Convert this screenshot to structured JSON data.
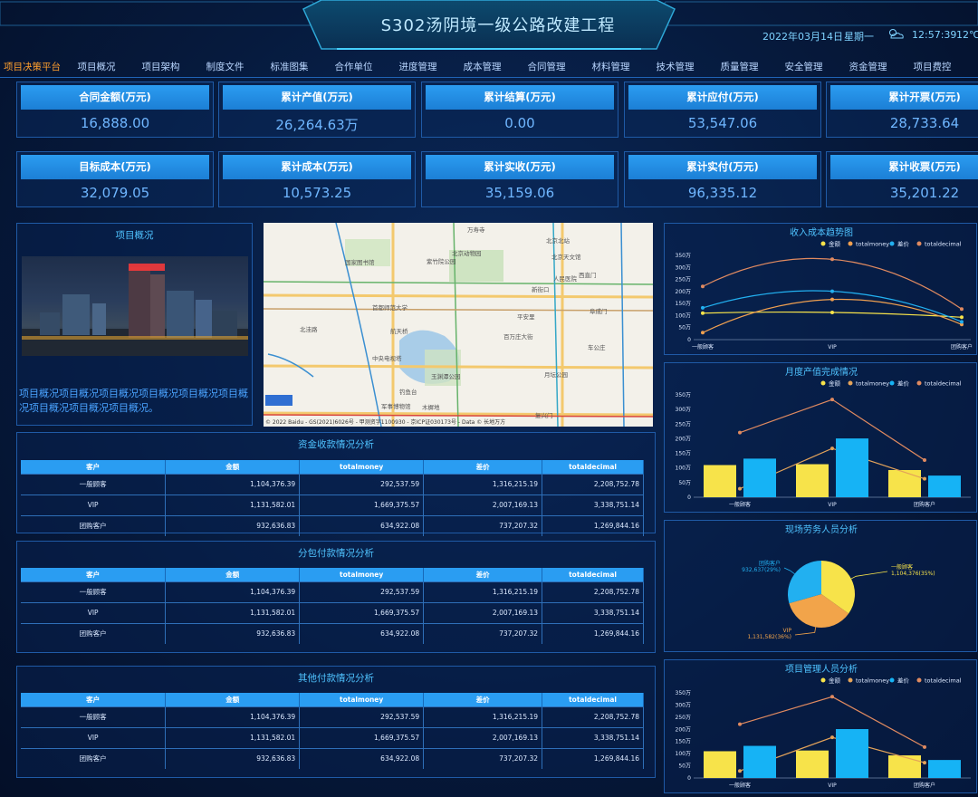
{
  "header": {
    "title": "S302汤阴境一级公路改建工程",
    "date": "2022年03月14日",
    "weekday": "星期一",
    "time": "12:57:39",
    "temperature": "12℃",
    "weather_icon": "cloudy-icon"
  },
  "nav": [
    {
      "label": "项目决策平台",
      "active": true
    },
    {
      "label": "项目概况"
    },
    {
      "label": "项目架构"
    },
    {
      "label": "制度文件"
    },
    {
      "label": "标准图集"
    },
    {
      "label": "合作单位"
    },
    {
      "label": "进度管理"
    },
    {
      "label": "成本管理"
    },
    {
      "label": "合同管理"
    },
    {
      "label": "材料管理"
    },
    {
      "label": "技术管理"
    },
    {
      "label": "质量管理"
    },
    {
      "label": "安全管理"
    },
    {
      "label": "资金管理"
    },
    {
      "label": "项目费控"
    }
  ],
  "kpis": [
    {
      "label": "合同金额(万元)",
      "value": "16,888.00"
    },
    {
      "label": "累计产值(万元)",
      "value": "26,264.63万"
    },
    {
      "label": "累计结算(万元)",
      "value": "0.00"
    },
    {
      "label": "累计应付(万元)",
      "value": "53,547.06"
    },
    {
      "label": "累计开票(万元)",
      "value": "28,733.64"
    },
    {
      "label": "目标成本(万元)",
      "value": "32,079.05"
    },
    {
      "label": "累计成本(万元)",
      "value": "10,573.25"
    },
    {
      "label": "累计实收(万元)",
      "value": "35,159.06"
    },
    {
      "label": "累计实付(万元)",
      "value": "96,335.12"
    },
    {
      "label": "累计收票(万元)",
      "value": "35,201.22"
    }
  ],
  "overview": {
    "title": "项目概况",
    "text": "项目概况项目概况项目概况项目概况项目概况项目概况项目概况项目概况项目概况。"
  },
  "map": {
    "labels": [
      "万寿寺",
      "北京动物园",
      "北京北站",
      "国家图书馆",
      "紫竹院公园",
      "首都师范大学",
      "西直门",
      "北京天文馆",
      "新街口",
      "人民医院",
      "平安里",
      "百万庄大街",
      "中央电视塔",
      "玉渊潭公园",
      "钓鱼台",
      "军事博物馆",
      "月坛公园",
      "木樨地",
      "复兴门",
      "车公庄",
      "阜成门",
      "航天桥",
      "北洼路"
    ],
    "credit": "© 2022 Baidu - GS(2021)6026号 - 甲测资字1100930 - 京ICP证030173号 - Data © 长地万方"
  },
  "tables": [
    {
      "title": "资金收款情况分析",
      "headers": [
        "客户",
        "金额",
        "totalmoney",
        "差价",
        "totaldecimal"
      ],
      "rows": [
        [
          "一般顾客",
          "1,104,376.39",
          "292,537.59",
          "1,316,215.19",
          "2,208,752.78"
        ],
        [
          "VIP",
          "1,131,582.01",
          "1,669,375.57",
          "2,007,169.13",
          "3,338,751.14"
        ],
        [
          "团购客户",
          "932,636.83",
          "634,922.08",
          "737,207.32",
          "1,269,844.16"
        ]
      ]
    },
    {
      "title": "分包付款情况分析",
      "headers": [
        "客户",
        "金额",
        "totalmoney",
        "差价",
        "totaldecimal"
      ],
      "rows": [
        [
          "一般顾客",
          "1,104,376.39",
          "292,537.59",
          "1,316,215.19",
          "2,208,752.78"
        ],
        [
          "VIP",
          "1,131,582.01",
          "1,669,375.57",
          "2,007,169.13",
          "3,338,751.14"
        ],
        [
          "团购客户",
          "932,636.83",
          "634,922.08",
          "737,207.32",
          "1,269,844.16"
        ]
      ]
    },
    {
      "title": "其他付款情况分析",
      "headers": [
        "客户",
        "金额",
        "totalmoney",
        "差价",
        "totaldecimal"
      ],
      "rows": [
        [
          "一般顾客",
          "1,104,376.39",
          "292,537.59",
          "1,316,215.19",
          "2,208,752.78"
        ],
        [
          "VIP",
          "1,131,582.01",
          "1,669,375.57",
          "2,007,169.13",
          "3,338,751.14"
        ],
        [
          "团购客户",
          "932,636.83",
          "634,922.08",
          "737,207.32",
          "1,269,844.16"
        ]
      ]
    }
  ],
  "chart_data": [
    {
      "type": "line",
      "title": "收入成本趋势图",
      "categories": [
        "一般顾客",
        "VIP",
        "团购客户"
      ],
      "ylim": [
        0,
        350
      ],
      "yticks": [
        "0",
        "50万",
        "100万",
        "150万",
        "200万",
        "250万",
        "300万",
        "350万"
      ],
      "legend": "top-right",
      "series": [
        {
          "name": "金额",
          "values": [
            110,
            113,
            93
          ],
          "color": "#f7e34a"
        },
        {
          "name": "totalmoney",
          "values": [
            29,
            167,
            63
          ],
          "color": "#f0a050"
        },
        {
          "name": "差价",
          "values": [
            132,
            201,
            74
          ],
          "color": "#22b0f0"
        },
        {
          "name": "totaldecimal",
          "values": [
            221,
            334,
            127
          ],
          "color": "#e08a60"
        }
      ]
    },
    {
      "type": "bar",
      "title": "月度产值完成情况",
      "categories": [
        "一般顾客",
        "VIP",
        "团购客户"
      ],
      "ylim": [
        0,
        350
      ],
      "yticks": [
        "0",
        "50万",
        "100万",
        "150万",
        "200万",
        "250万",
        "300万",
        "350万"
      ],
      "legend": "top-right",
      "series": [
        {
          "name": "金额",
          "kind": "bar",
          "values": [
            110,
            113,
            93
          ],
          "color": "#f7e34a"
        },
        {
          "name": "totalmoney",
          "kind": "line",
          "values": [
            29,
            167,
            63
          ],
          "color": "#e3a35a"
        },
        {
          "name": "差价",
          "kind": "bar",
          "values": [
            132,
            201,
            74
          ],
          "color": "#16b3f5"
        },
        {
          "name": "totaldecimal",
          "kind": "line",
          "values": [
            221,
            334,
            127
          ],
          "color": "#e08a60"
        }
      ]
    },
    {
      "type": "pie",
      "title": "现场劳务人员分析",
      "slices": [
        {
          "name": "一般顾客",
          "value": 1104376,
          "label": "一般顾客\n1,104,376(35%)",
          "color": "#f7e34a"
        },
        {
          "name": "VIP",
          "value": 1131582,
          "label": "VIP\n1,131,582(36%)",
          "color": "#f2a44a"
        },
        {
          "name": "团购客户",
          "value": 932637,
          "label": "团购客户\n932,637(29%)",
          "color": "#22b0f0"
        }
      ]
    },
    {
      "type": "bar",
      "title": "项目管理人员分析",
      "categories": [
        "一般顾客",
        "VIP",
        "团购客户"
      ],
      "ylim": [
        0,
        350
      ],
      "yticks": [
        "0",
        "50万",
        "100万",
        "150万",
        "200万",
        "250万",
        "300万",
        "350万"
      ],
      "legend": "top-right",
      "series": [
        {
          "name": "金额",
          "kind": "bar",
          "values": [
            110,
            113,
            93
          ],
          "color": "#f7e34a"
        },
        {
          "name": "totalmoney",
          "kind": "line",
          "values": [
            29,
            167,
            63
          ],
          "color": "#e3a35a"
        },
        {
          "name": "差价",
          "kind": "bar",
          "values": [
            132,
            201,
            74
          ],
          "color": "#16b3f5"
        },
        {
          "name": "totaldecimal",
          "kind": "line",
          "values": [
            221,
            334,
            127
          ],
          "color": "#e08a60"
        }
      ]
    }
  ]
}
